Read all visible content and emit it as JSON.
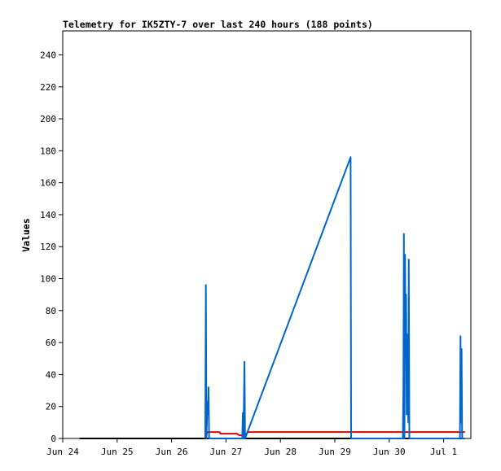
{
  "chart_data": {
    "type": "line",
    "title": "Telemetry for IK5ZTY-7 over last 240 hours (188 points)",
    "xlabel": "",
    "ylabel": "Values",
    "x_ticks": [
      "Jun 24",
      "Jun 25",
      "Jun 26",
      "Jun 27",
      "Jun 28",
      "Jun 29",
      "Jun 30",
      "Jul 1"
    ],
    "xlim": [
      0,
      7.5
    ],
    "y_ticks": [
      0,
      20,
      40,
      60,
      80,
      100,
      120,
      140,
      160,
      180,
      200,
      220,
      240
    ],
    "ylim": [
      0,
      255
    ],
    "grid": false,
    "series": [
      {
        "color": "#000000",
        "points": [
          [
            0.31,
            0
          ],
          [
            7.39,
            0
          ]
        ]
      },
      {
        "color": "#e00000",
        "points": [
          [
            2.62,
            0
          ],
          [
            2.66,
            4
          ],
          [
            2.88,
            4
          ],
          [
            2.9,
            3
          ],
          [
            3.2,
            3
          ],
          [
            3.25,
            2
          ],
          [
            3.36,
            2
          ],
          [
            3.4,
            4
          ],
          [
            5.3,
            4
          ],
          [
            7.39,
            4
          ]
        ]
      },
      {
        "color": "#0066cc",
        "points": [
          [
            2.62,
            0
          ],
          [
            2.63,
            96
          ],
          [
            2.64,
            0
          ],
          [
            2.66,
            23
          ],
          [
            2.67,
            15
          ],
          [
            2.68,
            32
          ],
          [
            2.69,
            0
          ],
          [
            3.3,
            0
          ],
          [
            3.31,
            16
          ],
          [
            3.32,
            0
          ],
          [
            3.34,
            48
          ],
          [
            3.35,
            0
          ],
          [
            5.29,
            176
          ],
          [
            5.3,
            0
          ],
          [
            6.25,
            0
          ],
          [
            6.26,
            32
          ],
          [
            6.27,
            128
          ],
          [
            6.28,
            0
          ],
          [
            6.29,
            115
          ],
          [
            6.3,
            60
          ],
          [
            6.31,
            90
          ],
          [
            6.32,
            15
          ],
          [
            6.33,
            65
          ],
          [
            6.34,
            40
          ],
          [
            6.35,
            10
          ],
          [
            6.36,
            112
          ],
          [
            6.37,
            0
          ],
          [
            7.3,
            0
          ],
          [
            7.31,
            64
          ],
          [
            7.32,
            10
          ],
          [
            7.33,
            56
          ],
          [
            7.34,
            0
          ],
          [
            7.39,
            0
          ]
        ]
      }
    ]
  }
}
